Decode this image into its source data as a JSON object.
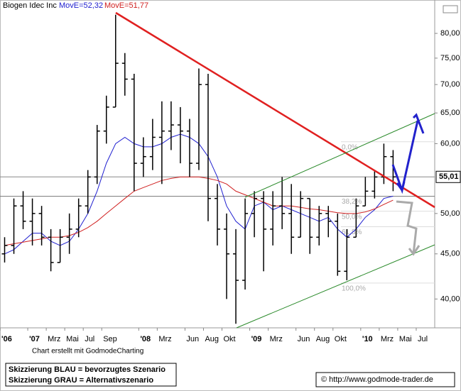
{
  "chart_data": {
    "type": "ohlc",
    "title": "Biogen Idec Inc",
    "categories": [
      "'06",
      null,
      null,
      "'07",
      null,
      "Mrz",
      null,
      "Mai",
      null,
      "Jul",
      null,
      "Sep",
      null,
      null,
      null,
      "'08",
      null,
      "Mrz",
      null,
      null,
      "Jun",
      null,
      "Aug",
      null,
      "Okt",
      null,
      null,
      "'09",
      null,
      "Mrz",
      null,
      null,
      "Jun",
      null,
      "Aug",
      null,
      "Okt",
      null,
      null,
      "'10",
      null,
      "Mrz",
      null,
      "Mai",
      null,
      "Jul",
      null
    ],
    "open": [
      45,
      46,
      51,
      49,
      50,
      47,
      44,
      47,
      48,
      51,
      55,
      62,
      66,
      74,
      71,
      57,
      58,
      61,
      62,
      63,
      62,
      57,
      70,
      52,
      48,
      45,
      42,
      50,
      52,
      48,
      51,
      50,
      47,
      52,
      47,
      50,
      49,
      43,
      47,
      51,
      53,
      55,
      58,
      null,
      null,
      null,
      null
    ],
    "high": [
      47,
      52,
      53,
      52,
      51,
      48,
      48,
      50,
      52,
      56,
      63,
      68,
      84,
      76,
      72,
      61,
      64,
      67,
      67,
      66,
      64,
      73,
      72,
      54,
      50,
      48,
      52,
      53,
      53,
      53,
      55,
      54,
      53,
      52,
      51,
      51,
      50,
      48,
      52,
      55,
      56,
      60,
      59,
      null,
      null,
      null,
      null
    ],
    "low": [
      44,
      45,
      48,
      46,
      46,
      43,
      44,
      45,
      47,
      50,
      54,
      60,
      66,
      68,
      53,
      55,
      56,
      54,
      59,
      57,
      55,
      56,
      49,
      46,
      40,
      37.5,
      41,
      47,
      43,
      46,
      48,
      45,
      47,
      45,
      46,
      47,
      42.5,
      42,
      47,
      51,
      52,
      54,
      53,
      null,
      null,
      null,
      null
    ],
    "close": [
      46,
      51,
      49,
      50,
      47,
      44,
      47,
      48,
      51,
      55,
      62,
      66,
      74,
      71,
      57,
      58,
      61,
      62,
      63,
      62,
      57,
      70,
      52,
      48,
      45,
      42,
      50,
      52,
      48,
      51,
      50,
      47,
      52,
      47,
      50,
      49,
      43,
      47,
      51,
      53,
      55,
      58,
      55.01,
      null,
      null,
      null,
      null
    ],
    "series": [
      {
        "name": "MovE=52,32",
        "color": "#2020d0",
        "values": [
          45,
          45.5,
          46.5,
          47.5,
          47.5,
          46.5,
          46,
          46.5,
          48,
          50,
          53,
          57,
          60,
          61,
          60,
          59.5,
          59.5,
          60,
          61,
          61.5,
          61,
          60,
          58,
          55,
          51,
          49,
          48,
          51,
          51.5,
          50.5,
          51,
          50.5,
          50,
          49.5,
          49,
          49.5,
          48,
          47,
          48,
          49.5,
          50.5,
          52,
          52.32,
          null,
          null,
          null,
          null
        ]
      },
      {
        "name": "MovE=51,77",
        "color": "#d02020",
        "values": [
          46,
          46.2,
          46.4,
          46.6,
          46.8,
          47,
          47,
          47.2,
          47.6,
          48.2,
          49,
          50,
          51,
          52,
          53,
          53.5,
          54,
          54.5,
          54.8,
          55,
          55,
          55,
          54.8,
          54.5,
          54,
          53,
          52.5,
          52,
          51.5,
          51,
          51,
          51,
          50.8,
          50.6,
          50.5,
          50.3,
          50.1,
          50,
          50,
          50.2,
          50.6,
          51.2,
          51.77,
          null,
          null,
          null,
          null
        ]
      }
    ],
    "ylim": [
      37.1,
      86
    ],
    "log_scale": true,
    "yticks": [
      {
        "value": 40,
        "label": "40,00"
      },
      {
        "value": 45,
        "label": "45,00"
      },
      {
        "value": 50,
        "label": "50,00"
      },
      {
        "value": 60,
        "label": "60,00"
      },
      {
        "value": 65,
        "label": "65,00"
      },
      {
        "value": 70,
        "label": "70,00"
      },
      {
        "value": 75,
        "label": "75,00"
      },
      {
        "value": 80,
        "label": "80,00"
      }
    ],
    "last_value": {
      "value": 55.01,
      "label": "55,01"
    },
    "fibonacci": [
      {
        "value": 60.3,
        "label": "0,0%"
      },
      {
        "value": 52.3,
        "label": "38,2%"
      },
      {
        "value": 50.3,
        "label": "50,0%"
      },
      {
        "value": 48.3,
        "label": "61,8%"
      },
      {
        "value": 41.7,
        "label": "100,0%"
      }
    ],
    "credit": "Chart erstellt mit GodmodeCharting",
    "notes": [
      "Skizzierung BLAU = bevorzugtes Szenario",
      "Skizzierung GRAU = Alternativszenario"
    ],
    "source": "© http://www.godmode-trader.de"
  }
}
